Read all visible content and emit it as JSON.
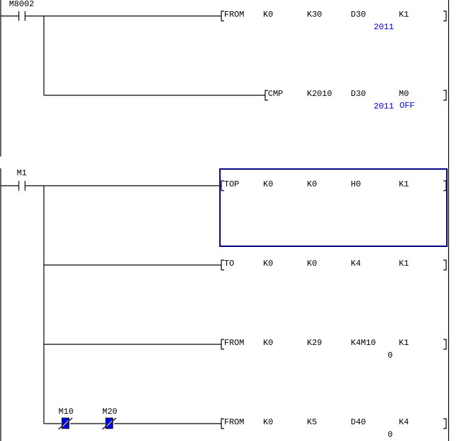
{
  "colors": {
    "line": "#000000",
    "monitor_value": "#0000ff",
    "cursor": "#000080",
    "contact_on_fill": "#0000ff"
  },
  "rungs": [
    {
      "contact": {
        "label": "M8002",
        "type": "normally-open"
      },
      "instructions": [
        {
          "op": "FROM",
          "operands": [
            "K0",
            "K30",
            "D30",
            "K1"
          ],
          "monitor": {
            "D30": "2011"
          }
        },
        {
          "op": "CMP",
          "operands": [
            "K2010",
            "D30",
            "M0"
          ],
          "monitor": {
            "D30": "2011",
            "M0": "OFF"
          }
        }
      ]
    },
    {
      "contact": {
        "label": "M1",
        "type": "normally-open"
      },
      "instructions": [
        {
          "op": "TOP",
          "operands": [
            "K0",
            "K0",
            "H0",
            "K1"
          ],
          "selected": true
        },
        {
          "op": "TO",
          "operands": [
            "K0",
            "K0",
            "K4",
            "K1"
          ]
        },
        {
          "op": "FROM",
          "operands": [
            "K0",
            "K29",
            "K4M10",
            "K1"
          ],
          "monitor": {
            "K4M10": "0"
          }
        },
        {
          "op": "FROM",
          "operands": [
            "K0",
            "K5",
            "D40",
            "K4"
          ],
          "monitor": {
            "D40": "0"
          },
          "series_contacts": [
            {
              "label": "M10",
              "type": "normally-closed",
              "state": "on"
            },
            {
              "label": "M20",
              "type": "normally-closed",
              "state": "on"
            }
          ]
        }
      ]
    }
  ]
}
